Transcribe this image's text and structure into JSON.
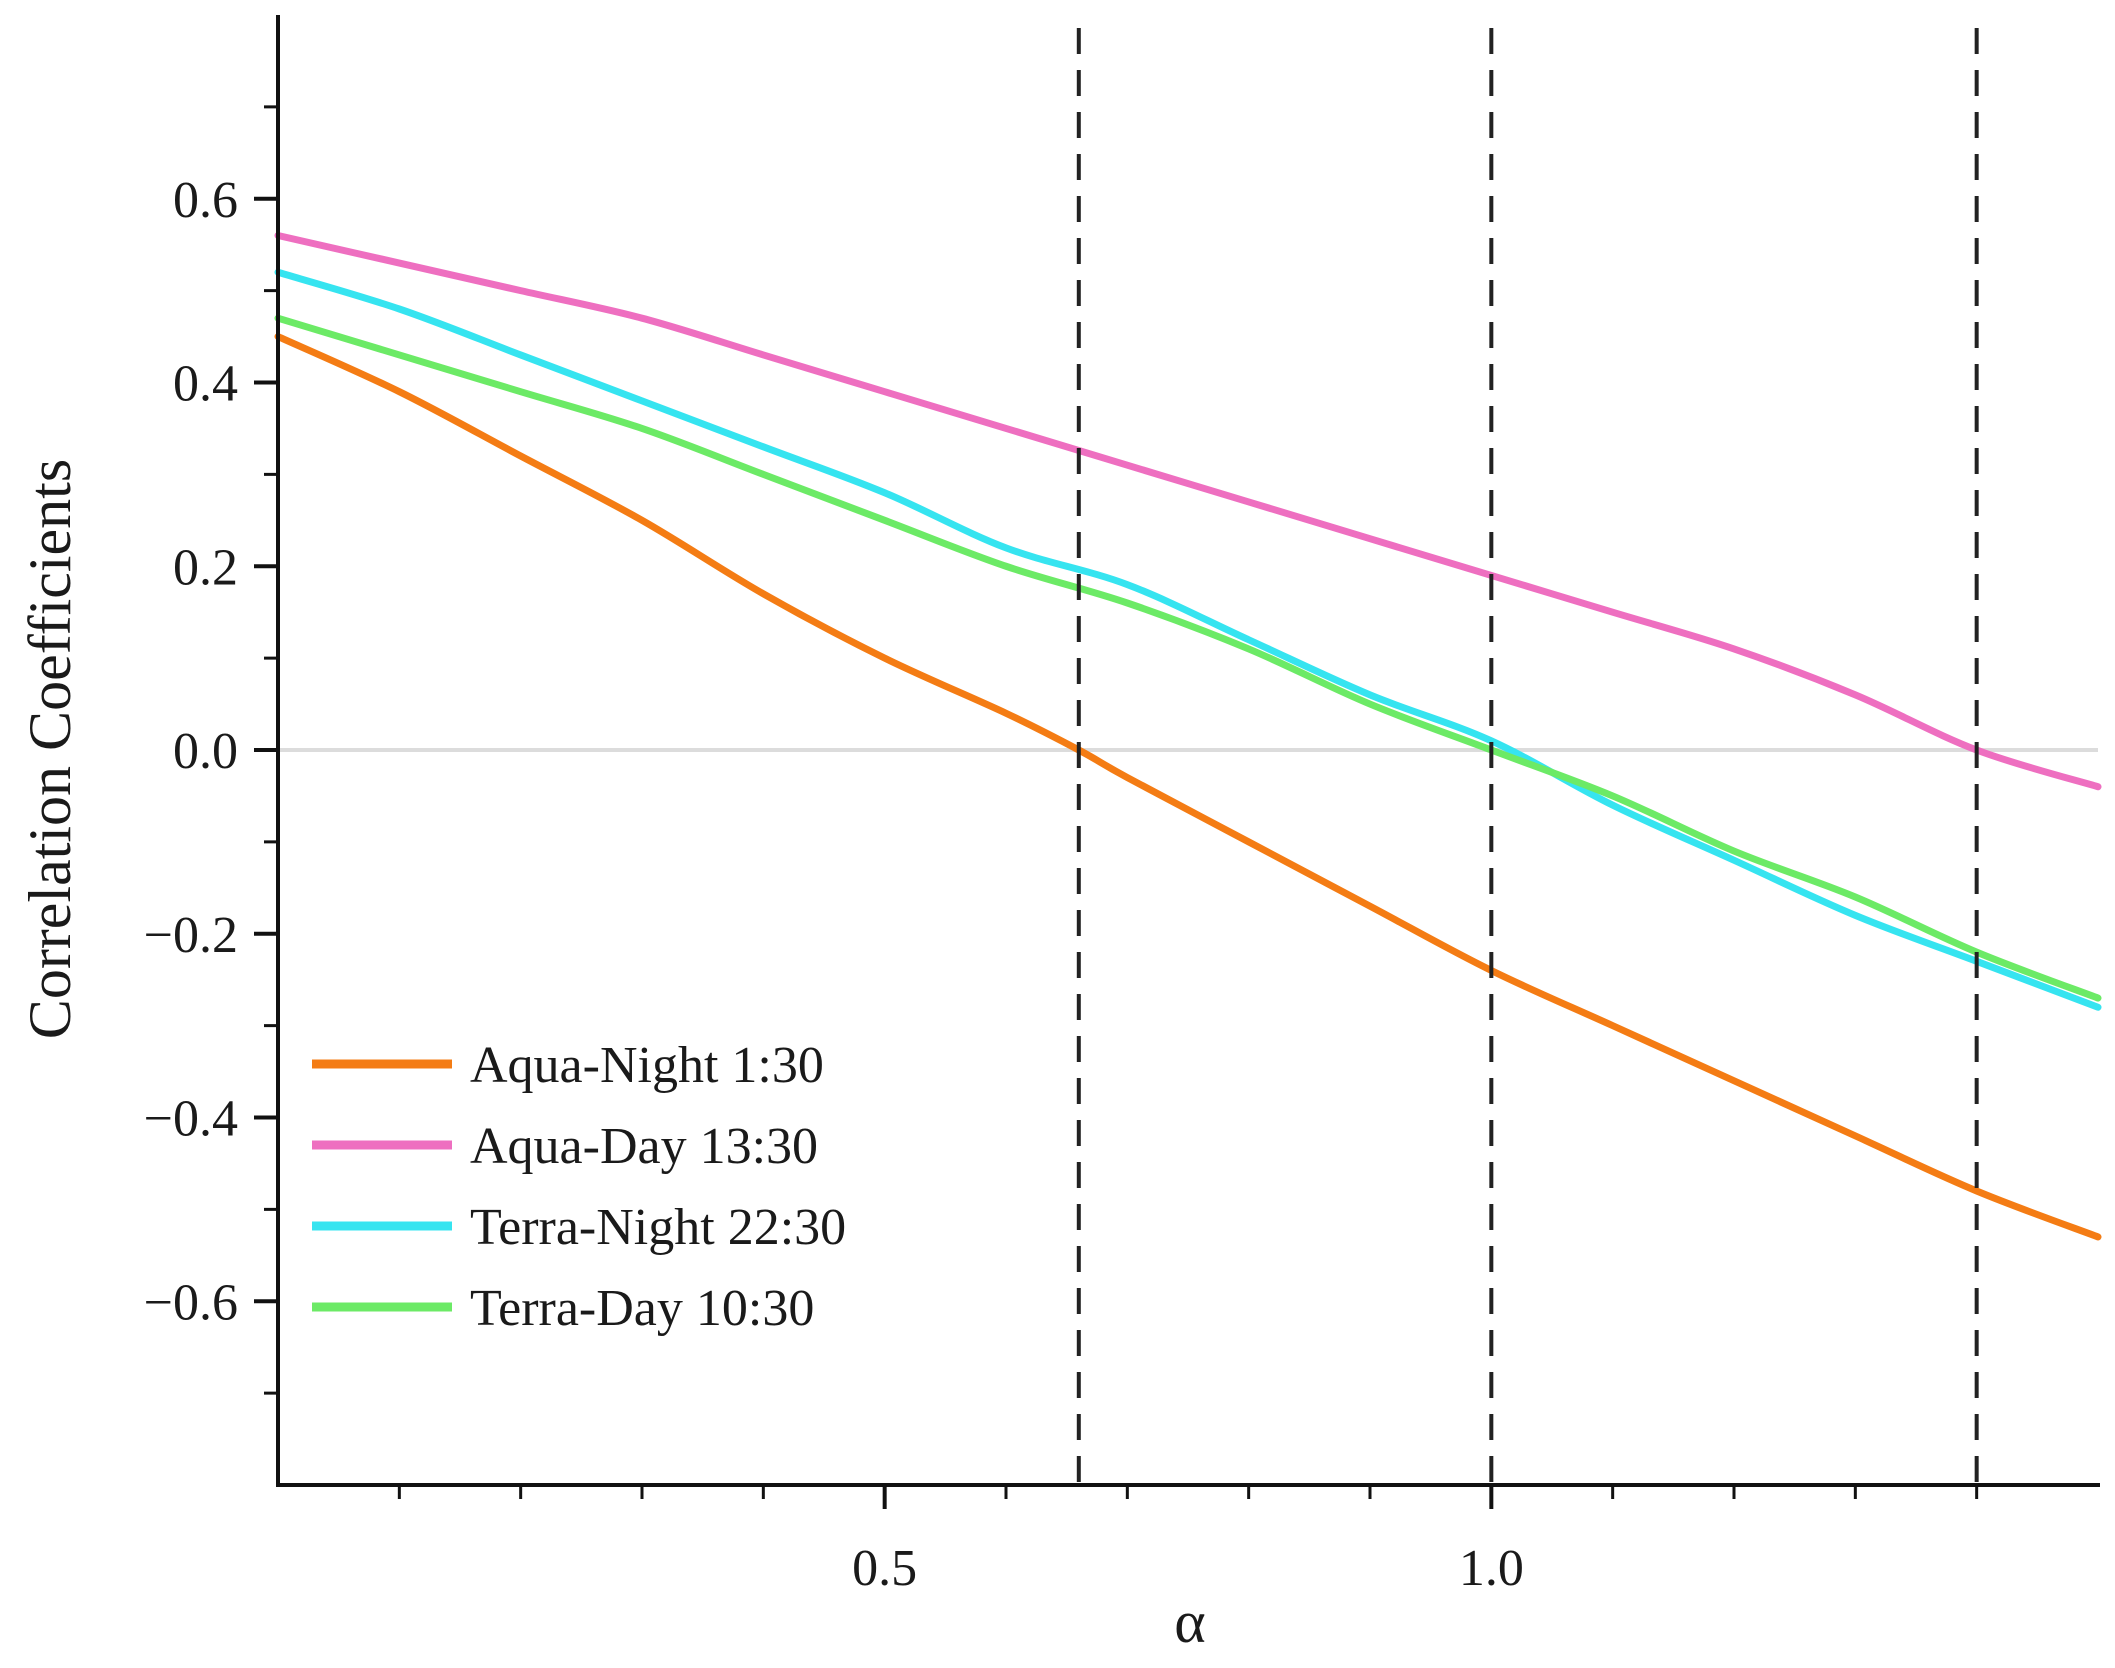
{
  "chart_data": {
    "type": "line",
    "title": "",
    "xlabel": "α",
    "ylabel": "Correlation Coefficients",
    "xlim": [
      0.0,
      1.5
    ],
    "ylim": [
      -0.8,
      0.8
    ],
    "x_ticks_major": [
      0.5,
      1.0
    ],
    "x_tick_labels": [
      "0.5",
      "1.0"
    ],
    "x_ticks_minor": [
      0.1,
      0.2,
      0.3,
      0.4,
      0.6,
      0.7,
      0.8,
      0.9,
      1.1,
      1.2,
      1.3,
      1.4
    ],
    "y_ticks_major": [
      0.6,
      0.4,
      0.2,
      0.0,
      -0.2,
      -0.4,
      -0.6
    ],
    "y_tick_labels": [
      "0.6",
      "0.4",
      "0.2",
      "0.0",
      "−0.2",
      "−0.4",
      "−0.6"
    ],
    "y_ticks_minor": [
      0.7,
      0.5,
      0.3,
      0.1,
      -0.1,
      -0.3,
      -0.5,
      -0.7
    ],
    "zero_line": 0.0,
    "vlines": [
      0.66,
      1.0,
      1.4
    ],
    "legend_position": "bottom-left",
    "series": [
      {
        "name": "Aqua-Night 1:30",
        "color": "#f47c14",
        "x": [
          0.0,
          0.1,
          0.2,
          0.3,
          0.4,
          0.5,
          0.6,
          0.66,
          0.7,
          0.8,
          0.9,
          1.0,
          1.1,
          1.2,
          1.3,
          1.4,
          1.5
        ],
        "y": [
          0.45,
          0.39,
          0.32,
          0.25,
          0.17,
          0.1,
          0.04,
          0.0,
          -0.03,
          -0.1,
          -0.17,
          -0.24,
          -0.3,
          -0.36,
          -0.42,
          -0.48,
          -0.53
        ]
      },
      {
        "name": "Aqua-Day 13:30",
        "color": "#ee6fc0",
        "x": [
          0.0,
          0.1,
          0.2,
          0.3,
          0.4,
          0.5,
          0.6,
          0.7,
          0.8,
          0.9,
          1.0,
          1.1,
          1.2,
          1.3,
          1.4,
          1.5
        ],
        "y": [
          0.56,
          0.53,
          0.5,
          0.47,
          0.43,
          0.39,
          0.35,
          0.31,
          0.27,
          0.23,
          0.19,
          0.15,
          0.11,
          0.06,
          0.0,
          -0.04
        ]
      },
      {
        "name": "Terra-Night 22:30",
        "color": "#36e4f0",
        "x": [
          0.0,
          0.1,
          0.2,
          0.3,
          0.4,
          0.5,
          0.6,
          0.7,
          0.8,
          0.9,
          1.0,
          1.1,
          1.2,
          1.3,
          1.4,
          1.5
        ],
        "y": [
          0.52,
          0.48,
          0.43,
          0.38,
          0.33,
          0.28,
          0.22,
          0.18,
          0.12,
          0.06,
          0.01,
          -0.06,
          -0.12,
          -0.18,
          -0.23,
          -0.28
        ]
      },
      {
        "name": "Terra-Day 10:30",
        "color": "#6cea66",
        "x": [
          0.0,
          0.1,
          0.2,
          0.3,
          0.4,
          0.5,
          0.6,
          0.7,
          0.8,
          0.9,
          1.0,
          1.1,
          1.2,
          1.3,
          1.4,
          1.5
        ],
        "y": [
          0.47,
          0.43,
          0.39,
          0.35,
          0.3,
          0.25,
          0.2,
          0.16,
          0.11,
          0.05,
          0.0,
          -0.05,
          -0.11,
          -0.16,
          -0.22,
          -0.27
        ]
      }
    ]
  }
}
